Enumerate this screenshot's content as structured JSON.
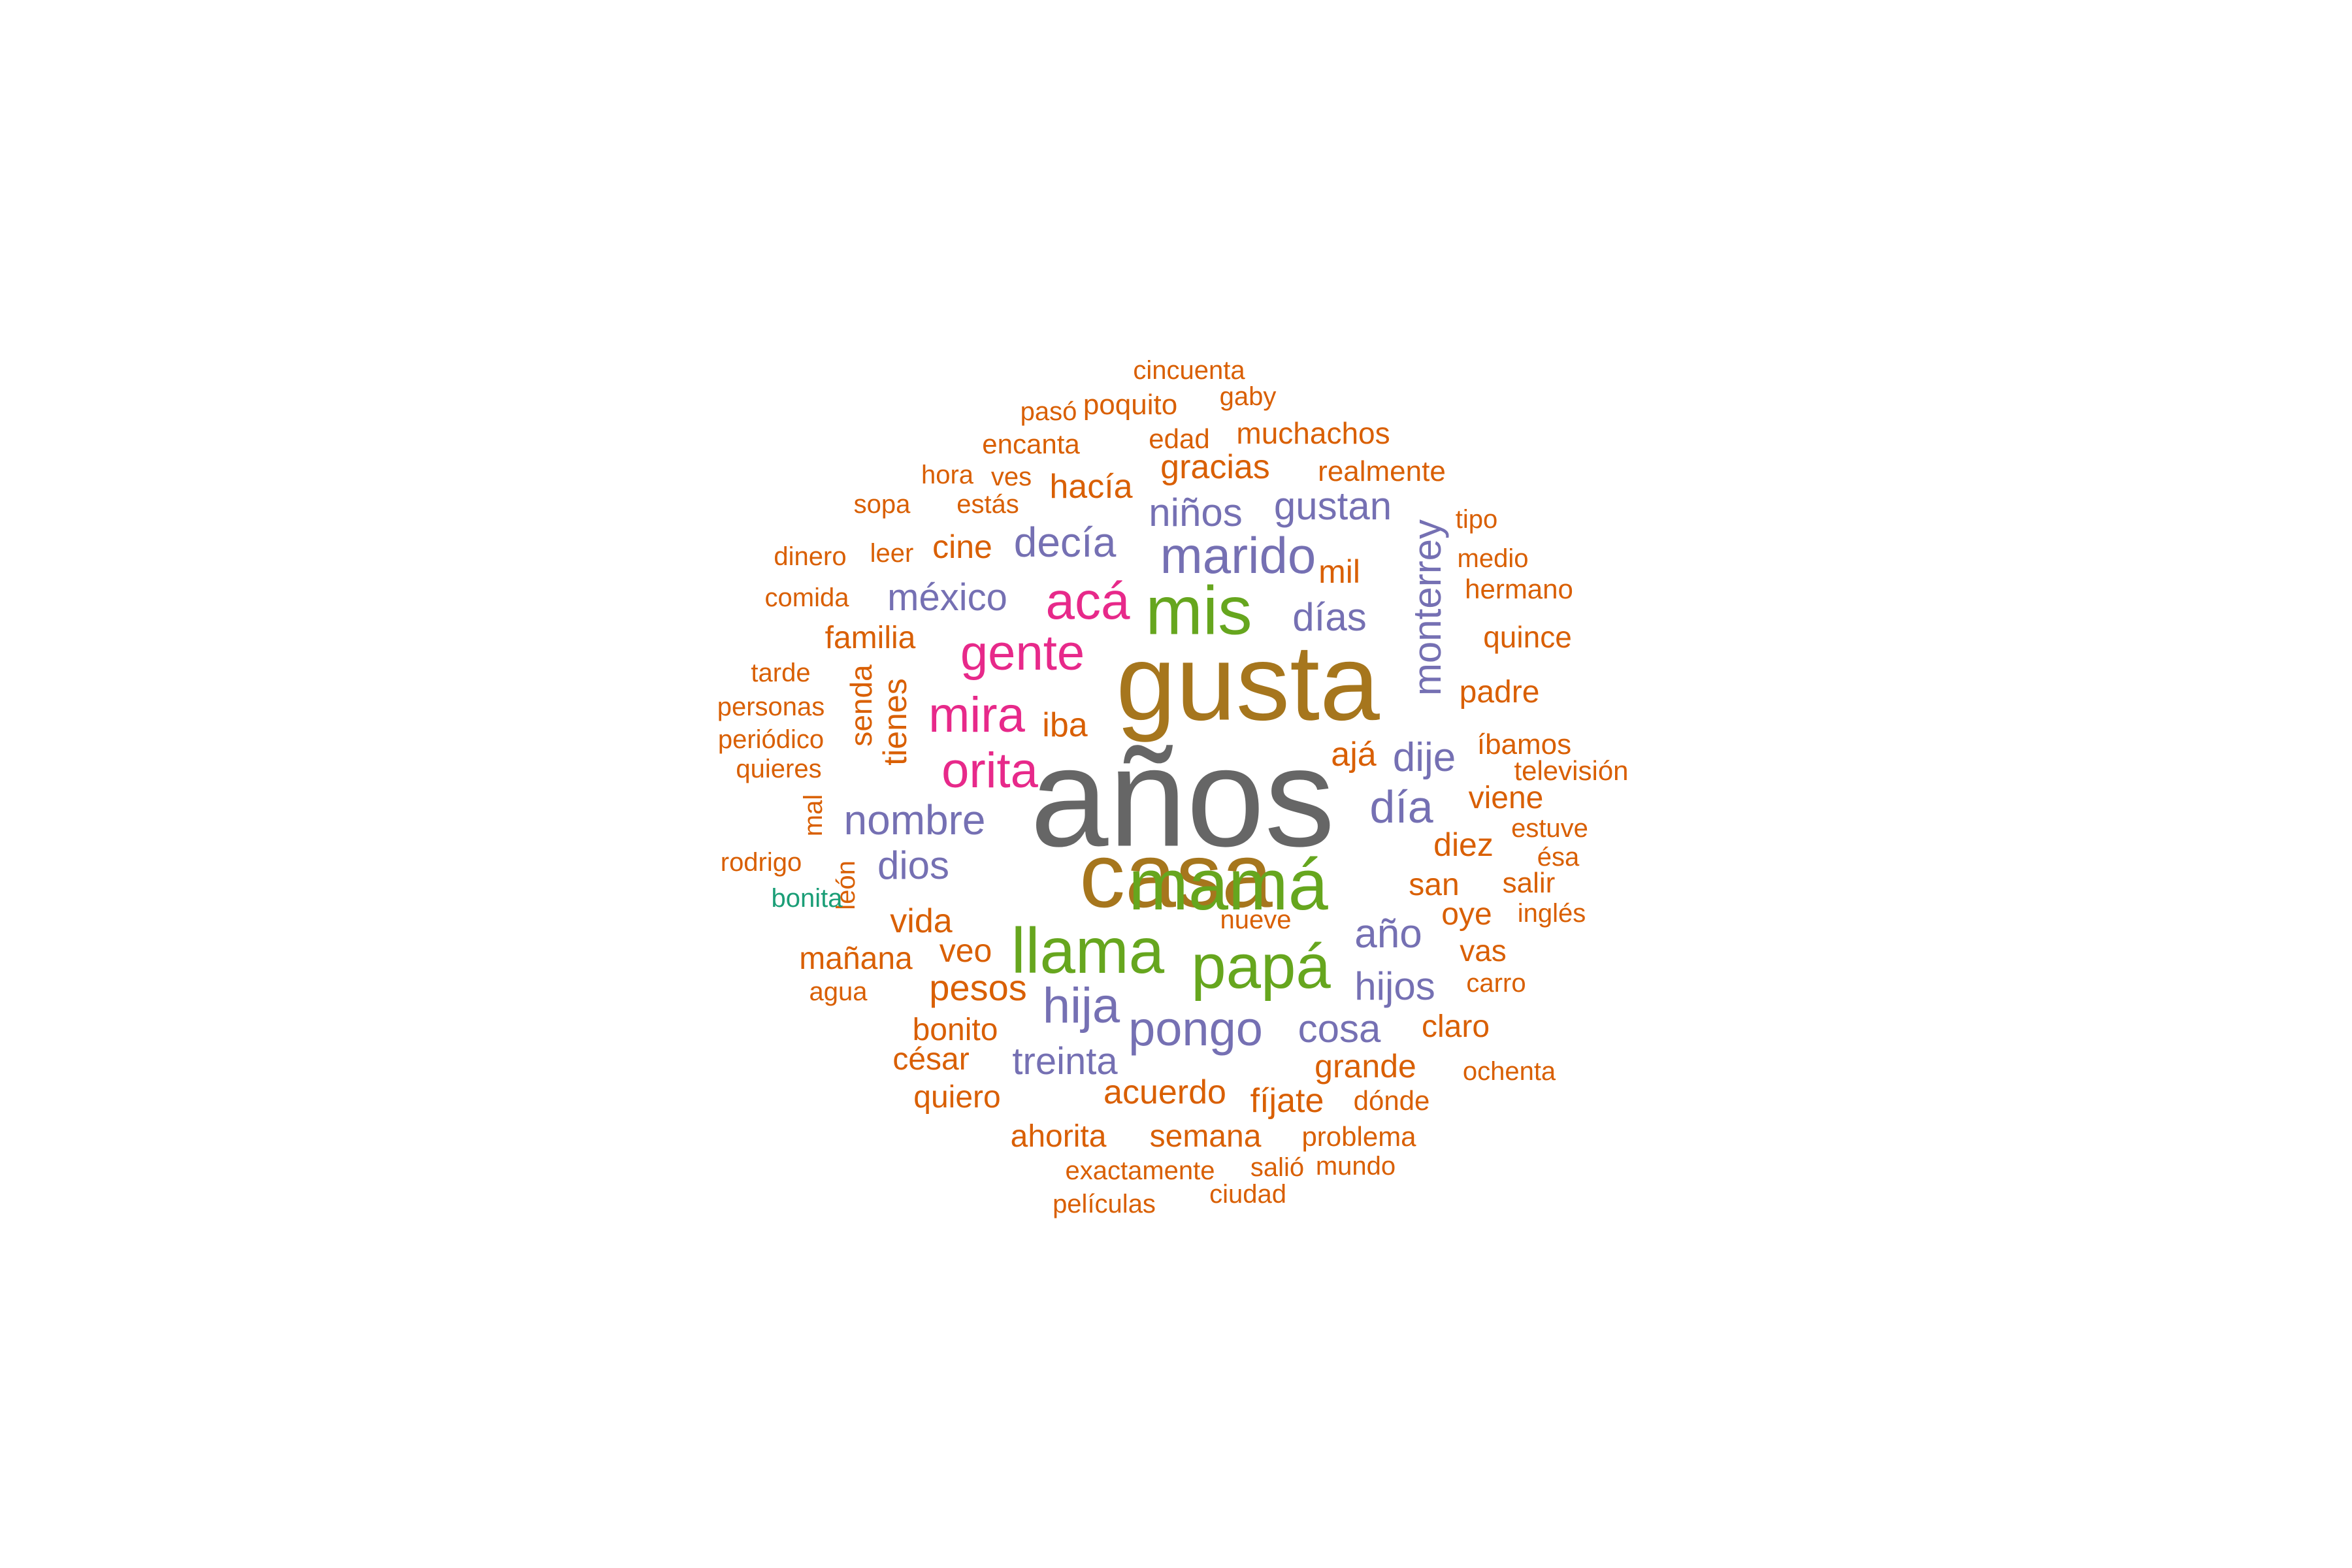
{
  "palette": {
    "orange": "#D95F02",
    "purple": "#7570B3",
    "magenta": "#E7298A",
    "green": "#66A61E",
    "olive": "#A6761D",
    "gray": "#666666",
    "teal": "#1B9E77"
  },
  "words": [
    {
      "text": "años",
      "color": "gray"
    },
    {
      "text": "gusta",
      "color": "olive"
    },
    {
      "text": "casa",
      "color": "olive"
    },
    {
      "text": "mamá",
      "color": "green"
    },
    {
      "text": "llama",
      "color": "green"
    },
    {
      "text": "papá",
      "color": "green"
    },
    {
      "text": "mis",
      "color": "green"
    },
    {
      "text": "acá",
      "color": "magenta"
    },
    {
      "text": "gente",
      "color": "magenta"
    },
    {
      "text": "mira",
      "color": "magenta"
    },
    {
      "text": "orita",
      "color": "magenta"
    },
    {
      "text": "marido",
      "color": "purple"
    },
    {
      "text": "hija",
      "color": "purple"
    },
    {
      "text": "pongo",
      "color": "purple"
    },
    {
      "text": "nombre",
      "color": "purple"
    },
    {
      "text": "decía",
      "color": "purple"
    },
    {
      "text": "niños",
      "color": "purple"
    },
    {
      "text": "gustan",
      "color": "purple"
    },
    {
      "text": "monterrey",
      "color": "purple"
    },
    {
      "text": "méxico",
      "color": "purple"
    },
    {
      "text": "días",
      "color": "purple"
    },
    {
      "text": "día",
      "color": "purple"
    },
    {
      "text": "dije",
      "color": "purple"
    },
    {
      "text": "dios",
      "color": "purple"
    },
    {
      "text": "año",
      "color": "purple"
    },
    {
      "text": "hijos",
      "color": "purple"
    },
    {
      "text": "cosa",
      "color": "purple"
    },
    {
      "text": "treinta",
      "color": "purple"
    },
    {
      "text": "cincuenta",
      "color": "orange"
    },
    {
      "text": "pasó",
      "color": "orange"
    },
    {
      "text": "poquito",
      "color": "orange"
    },
    {
      "text": "gaby",
      "color": "orange"
    },
    {
      "text": "encanta",
      "color": "orange"
    },
    {
      "text": "edad",
      "color": "orange"
    },
    {
      "text": "muchachos",
      "color": "orange"
    },
    {
      "text": "hora",
      "color": "orange"
    },
    {
      "text": "ves",
      "color": "orange"
    },
    {
      "text": "gracias",
      "color": "orange"
    },
    {
      "text": "realmente",
      "color": "orange"
    },
    {
      "text": "sopa",
      "color": "orange"
    },
    {
      "text": "estás",
      "color": "orange"
    },
    {
      "text": "hacía",
      "color": "orange"
    },
    {
      "text": "tipo",
      "color": "orange"
    },
    {
      "text": "dinero",
      "color": "orange"
    },
    {
      "text": "leer",
      "color": "orange"
    },
    {
      "text": "cine",
      "color": "orange"
    },
    {
      "text": "medio",
      "color": "orange"
    },
    {
      "text": "mil",
      "color": "orange"
    },
    {
      "text": "hermano",
      "color": "orange"
    },
    {
      "text": "comida",
      "color": "orange"
    },
    {
      "text": "familia",
      "color": "orange"
    },
    {
      "text": "quince",
      "color": "orange"
    },
    {
      "text": "tarde",
      "color": "orange"
    },
    {
      "text": "senda",
      "color": "orange"
    },
    {
      "text": "tienes",
      "color": "orange"
    },
    {
      "text": "padre",
      "color": "orange"
    },
    {
      "text": "personas",
      "color": "orange"
    },
    {
      "text": "iba",
      "color": "orange"
    },
    {
      "text": "periódico",
      "color": "orange"
    },
    {
      "text": "ajá",
      "color": "orange"
    },
    {
      "text": "íbamos",
      "color": "orange"
    },
    {
      "text": "quieres",
      "color": "orange"
    },
    {
      "text": "televisión",
      "color": "orange"
    },
    {
      "text": "mal",
      "color": "orange"
    },
    {
      "text": "viene",
      "color": "orange"
    },
    {
      "text": "estuve",
      "color": "orange"
    },
    {
      "text": "diez",
      "color": "orange"
    },
    {
      "text": "ésa",
      "color": "orange"
    },
    {
      "text": "rodrigo",
      "color": "orange"
    },
    {
      "text": "león",
      "color": "orange"
    },
    {
      "text": "san",
      "color": "orange"
    },
    {
      "text": "salir",
      "color": "orange"
    },
    {
      "text": "bonita",
      "color": "teal"
    },
    {
      "text": "vida",
      "color": "orange"
    },
    {
      "text": "nueve",
      "color": "orange"
    },
    {
      "text": "oye",
      "color": "orange"
    },
    {
      "text": "inglés",
      "color": "orange"
    },
    {
      "text": "mañana",
      "color": "orange"
    },
    {
      "text": "veo",
      "color": "orange"
    },
    {
      "text": "vas",
      "color": "orange"
    },
    {
      "text": "agua",
      "color": "orange"
    },
    {
      "text": "pesos",
      "color": "orange"
    },
    {
      "text": "carro",
      "color": "orange"
    },
    {
      "text": "bonito",
      "color": "orange"
    },
    {
      "text": "claro",
      "color": "orange"
    },
    {
      "text": "césar",
      "color": "orange"
    },
    {
      "text": "grande",
      "color": "orange"
    },
    {
      "text": "ochenta",
      "color": "orange"
    },
    {
      "text": "quiero",
      "color": "orange"
    },
    {
      "text": "acuerdo",
      "color": "orange"
    },
    {
      "text": "fíjate",
      "color": "orange"
    },
    {
      "text": "dónde",
      "color": "orange"
    },
    {
      "text": "ahorita",
      "color": "orange"
    },
    {
      "text": "semana",
      "color": "orange"
    },
    {
      "text": "problema",
      "color": "orange"
    },
    {
      "text": "exactamente",
      "color": "orange"
    },
    {
      "text": "salió",
      "color": "orange"
    },
    {
      "text": "mundo",
      "color": "orange"
    },
    {
      "text": "películas",
      "color": "orange"
    },
    {
      "text": "ciudad",
      "color": "orange"
    }
  ]
}
